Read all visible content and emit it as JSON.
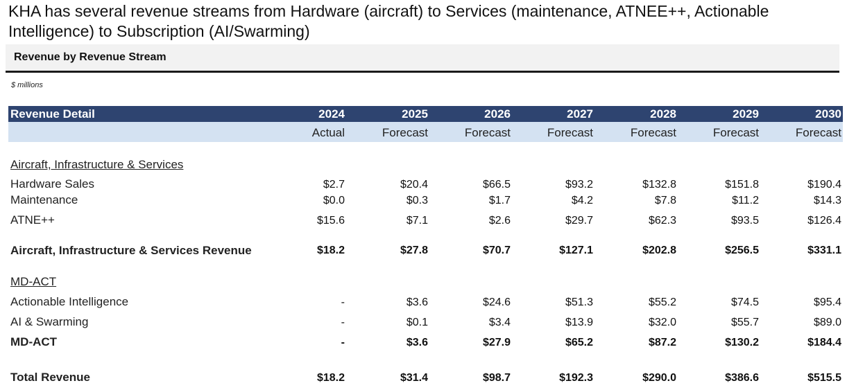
{
  "headline": "KHA has several revenue streams from Hardware (aircraft) to Services (maintenance, ATNEE++, Actionable Intelligence) to Subscription (AI/Swarming)",
  "section_title": "Revenue by Revenue Stream",
  "units": "$ millions",
  "table": {
    "header_label": "Revenue Detail",
    "years": [
      "2024",
      "2025",
      "2026",
      "2027",
      "2028",
      "2029",
      "2030"
    ],
    "statuses": [
      "Actual",
      "Forecast",
      "Forecast",
      "Forecast",
      "Forecast",
      "Forecast",
      "Forecast"
    ],
    "group1_label": "Aircraft, Infrastructure & Services",
    "rows": [
      {
        "label": "Hardware Sales",
        "values": [
          "$2.7",
          "$20.4",
          "$66.5",
          "$93.2",
          "$132.8",
          "$151.8",
          "$190.4"
        ]
      },
      {
        "label": "Maintenance",
        "values": [
          "$0.0",
          "$0.3",
          "$1.7",
          "$4.2",
          "$7.8",
          "$11.2",
          "$14.3"
        ]
      },
      {
        "label": "ATNE++",
        "values": [
          "$15.6",
          "$7.1",
          "$2.6",
          "$29.7",
          "$62.3",
          "$93.5",
          "$126.4"
        ]
      },
      {
        "label": "Aircraft, Infrastructure & Services Revenue",
        "values": [
          "$18.2",
          "$27.8",
          "$70.7",
          "$127.1",
          "$202.8",
          "$256.5",
          "$331.1"
        ]
      },
      {
        "label": "Actionable Intelligence",
        "values": [
          "-",
          "$3.6",
          "$24.6",
          "$51.3",
          "$55.2",
          "$74.5",
          "$95.4"
        ]
      },
      {
        "label": "AI & Swarming",
        "values": [
          "-",
          "$0.1",
          "$3.4",
          "$13.9",
          "$32.0",
          "$55.7",
          "$89.0"
        ]
      },
      {
        "label": "MD-ACT",
        "values": [
          "-",
          "$3.6",
          "$27.9",
          "$65.2",
          "$87.2",
          "$130.2",
          "$184.4"
        ]
      },
      {
        "label": "Total Revenue",
        "values": [
          "$18.2",
          "$31.4",
          "$98.7",
          "$192.3",
          "$290.0",
          "$386.6",
          "$515.5"
        ]
      }
    ],
    "group2_label": "MD-ACT"
  }
}
